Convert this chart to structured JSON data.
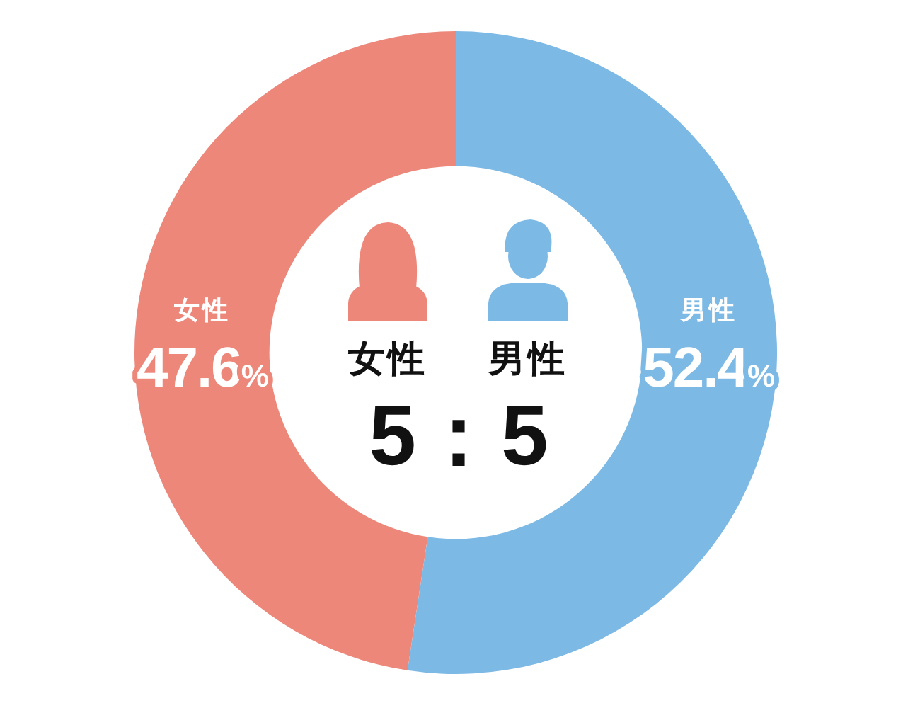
{
  "chart_data": {
    "type": "donut",
    "categories": [
      "男性",
      "女性"
    ],
    "values": [
      52.4,
      47.6
    ],
    "colors": [
      "#7db9e5",
      "#ec877a"
    ],
    "value_labels": [
      "52.4%",
      "47.6%"
    ],
    "annotations": [
      "女性",
      "男性",
      "5：5"
    ]
  }
}
